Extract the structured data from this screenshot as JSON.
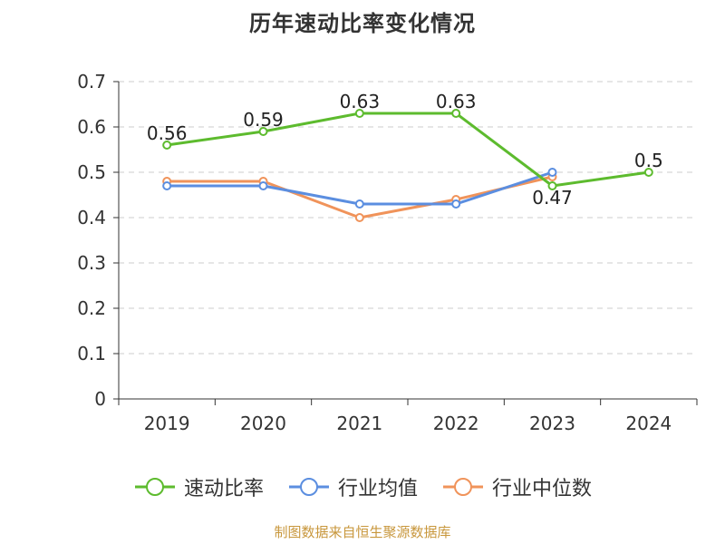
{
  "chart_data": {
    "type": "line",
    "title": "历年速动比率变化情况",
    "categories": [
      "2019",
      "2020",
      "2021",
      "2022",
      "2023",
      "2024"
    ],
    "ylim": [
      0,
      0.7
    ],
    "yticks": [
      "0",
      "0.1",
      "0.2",
      "0.3",
      "0.4",
      "0.5",
      "0.6",
      "0.7"
    ],
    "grid": true,
    "legend_position": "bottom",
    "series": [
      {
        "name": "速动比率",
        "color": "#5dbb2e",
        "values": [
          0.56,
          0.59,
          0.63,
          0.63,
          0.47,
          0.5
        ],
        "labels": [
          "0.56",
          "0.59",
          "0.63",
          "0.63",
          "0.47",
          "0.5"
        ]
      },
      {
        "name": "行业均值",
        "color": "#5b8ee0",
        "values": [
          0.47,
          0.47,
          0.43,
          0.43,
          0.5,
          null
        ]
      },
      {
        "name": "行业中位数",
        "color": "#f0935a",
        "values": [
          0.48,
          0.48,
          0.4,
          0.44,
          0.49,
          null
        ]
      }
    ]
  },
  "source": "制图数据来自恒生聚源数据库"
}
